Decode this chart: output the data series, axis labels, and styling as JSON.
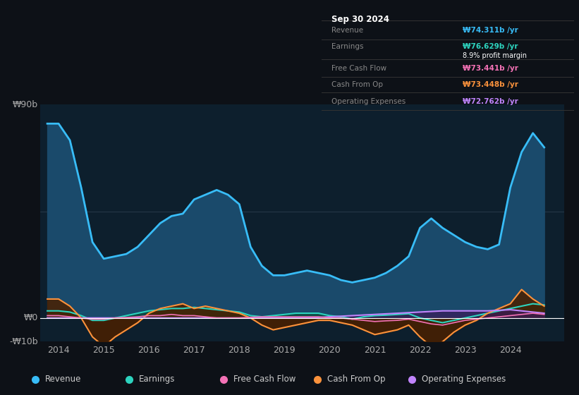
{
  "bg_color": "#0d1117",
  "plot_bg_color": "#0d1f2d",
  "title_box_date": "Sep 30 2024",
  "ylim": [
    -10,
    90
  ],
  "xticks": [
    2014,
    2015,
    2016,
    2017,
    2018,
    2019,
    2020,
    2021,
    2022,
    2023,
    2024
  ],
  "legend": [
    {
      "label": "Revenue",
      "color": "#38bdf8"
    },
    {
      "label": "Earnings",
      "color": "#2dd4bf"
    },
    {
      "label": "Free Cash Flow",
      "color": "#f472b6"
    },
    {
      "label": "Cash From Op",
      "color": "#fb923c"
    },
    {
      "label": "Operating Expenses",
      "color": "#c084fc"
    }
  ],
  "revenue_x": [
    2013.75,
    2014.0,
    2014.25,
    2014.5,
    2014.75,
    2015.0,
    2015.25,
    2015.5,
    2015.75,
    2016.0,
    2016.25,
    2016.5,
    2016.75,
    2017.0,
    2017.25,
    2017.5,
    2017.75,
    2018.0,
    2018.25,
    2018.5,
    2018.75,
    2019.0,
    2019.25,
    2019.5,
    2019.75,
    2020.0,
    2020.25,
    2020.5,
    2020.75,
    2021.0,
    2021.25,
    2021.5,
    2021.75,
    2022.0,
    2022.25,
    2022.5,
    2022.75,
    2023.0,
    2023.25,
    2023.5,
    2023.75,
    2024.0,
    2024.25,
    2024.5,
    2024.75
  ],
  "revenue_y": [
    82,
    82,
    75,
    55,
    32,
    25,
    26,
    27,
    30,
    35,
    40,
    43,
    44,
    50,
    52,
    54,
    52,
    48,
    30,
    22,
    18,
    18,
    19,
    20,
    19,
    18,
    16,
    15,
    16,
    17,
    19,
    22,
    26,
    38,
    42,
    38,
    35,
    32,
    30,
    29,
    31,
    55,
    70,
    78,
    72
  ],
  "revenue_color": "#38bdf8",
  "revenue_fill": "#1a4a6b",
  "earnings_x": [
    2013.75,
    2014.0,
    2014.25,
    2014.5,
    2014.75,
    2015.0,
    2015.25,
    2015.5,
    2015.75,
    2016.0,
    2016.25,
    2016.5,
    2016.75,
    2017.0,
    2017.25,
    2017.5,
    2017.75,
    2018.0,
    2018.25,
    2018.5,
    2018.75,
    2019.0,
    2019.25,
    2019.5,
    2019.75,
    2020.0,
    2020.25,
    2020.5,
    2020.75,
    2021.0,
    2021.25,
    2021.5,
    2021.75,
    2022.0,
    2022.25,
    2022.5,
    2022.75,
    2023.0,
    2023.25,
    2023.5,
    2023.75,
    2024.0,
    2024.25,
    2024.5,
    2024.75
  ],
  "earnings_y": [
    3,
    3,
    2.5,
    1,
    -1,
    -1,
    0,
    1,
    2,
    3,
    3.5,
    4,
    4,
    4.5,
    4,
    3.5,
    3,
    2.5,
    1,
    0.5,
    1,
    1.5,
    2,
    2,
    2,
    1,
    0.5,
    -0.5,
    0.5,
    1,
    1.2,
    1.5,
    1.8,
    0,
    -1,
    -2,
    -1,
    0,
    1,
    2,
    3,
    4,
    5,
    6,
    5.5
  ],
  "earnings_color": "#2dd4bf",
  "earnings_fill": "#0d4a40",
  "fcf_x": [
    2013.75,
    2014.0,
    2014.25,
    2014.5,
    2014.75,
    2015.0,
    2015.25,
    2015.5,
    2015.75,
    2016.0,
    2016.25,
    2016.5,
    2016.75,
    2017.0,
    2017.25,
    2017.5,
    2017.75,
    2018.0,
    2018.25,
    2018.5,
    2018.75,
    2019.0,
    2019.25,
    2019.5,
    2019.75,
    2020.0,
    2020.25,
    2020.5,
    2020.75,
    2021.0,
    2021.25,
    2021.5,
    2021.75,
    2022.0,
    2022.25,
    2022.5,
    2022.75,
    2023.0,
    2023.25,
    2023.5,
    2023.75,
    2024.0,
    2024.25,
    2024.5,
    2024.75
  ],
  "fcf_y": [
    1,
    1,
    0.5,
    0,
    -0.5,
    -0.5,
    0,
    0.2,
    0.5,
    1,
    1,
    1.5,
    1,
    1,
    0.5,
    0,
    0,
    0,
    0.3,
    0.5,
    0.5,
    0.5,
    0.5,
    0.5,
    0.5,
    0,
    0,
    -0.5,
    -1,
    -1.5,
    -1.2,
    -1,
    -0.5,
    -1.5,
    -2.5,
    -3,
    -2,
    -1,
    -0.5,
    0,
    0.5,
    1,
    1.5,
    2,
    1.5
  ],
  "fcf_color": "#f472b6",
  "cfop_x": [
    2013.75,
    2014.0,
    2014.25,
    2014.5,
    2014.75,
    2015.0,
    2015.25,
    2015.5,
    2015.75,
    2016.0,
    2016.25,
    2016.5,
    2016.75,
    2017.0,
    2017.25,
    2017.5,
    2017.75,
    2018.0,
    2018.25,
    2018.5,
    2018.75,
    2019.0,
    2019.25,
    2019.5,
    2019.75,
    2020.0,
    2020.25,
    2020.5,
    2020.75,
    2021.0,
    2021.25,
    2021.5,
    2021.75,
    2022.0,
    2022.25,
    2022.5,
    2022.75,
    2023.0,
    2023.25,
    2023.5,
    2023.75,
    2024.0,
    2024.25,
    2024.5,
    2024.75
  ],
  "cfop_y": [
    8,
    8,
    5,
    0,
    -8,
    -12,
    -8,
    -5,
    -2,
    2,
    4,
    5,
    6,
    4,
    5,
    4,
    3,
    2,
    0,
    -3,
    -5,
    -4,
    -3,
    -2,
    -1,
    -1,
    -2,
    -3,
    -5,
    -7,
    -6,
    -5,
    -3,
    -8,
    -12,
    -10,
    -6,
    -3,
    -1,
    2,
    4,
    6,
    12,
    8,
    5
  ],
  "cfop_color": "#fb923c",
  "cfop_fill": "#4a2000",
  "opex_x": [
    2013.75,
    2014.0,
    2014.5,
    2015.0,
    2015.5,
    2016.0,
    2016.5,
    2017.0,
    2017.5,
    2018.0,
    2018.5,
    2019.0,
    2019.5,
    2020.0,
    2020.5,
    2021.0,
    2021.5,
    2022.0,
    2022.5,
    2023.0,
    2023.5,
    2024.0,
    2024.25,
    2024.5,
    2024.75
  ],
  "opex_y": [
    0,
    0,
    0,
    0,
    0,
    0,
    0,
    0,
    0,
    0,
    0,
    0,
    0,
    0.5,
    1,
    1.5,
    2,
    2.5,
    3,
    3,
    3,
    3.5,
    3,
    2.5,
    2
  ],
  "opex_color": "#c084fc"
}
